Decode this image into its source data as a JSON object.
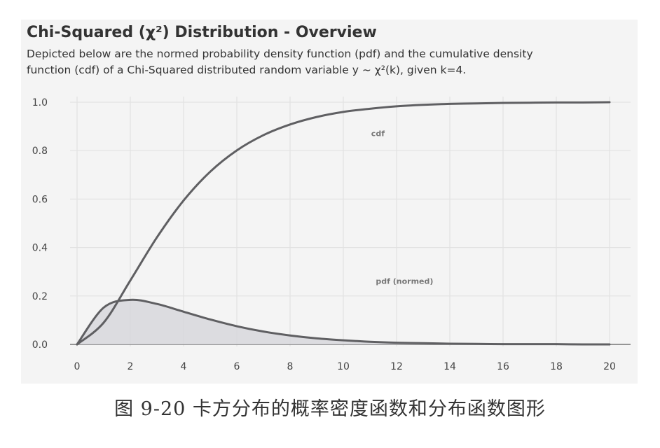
{
  "caption": "图 9-20 卡方分布的概率密度函数和分布函数图形",
  "colors": {
    "line": "#5f5f62",
    "fill": "#d7d7dc",
    "grid": "#e2e2e2",
    "plot_bg": "#f4f4f4",
    "axis": "#777777"
  },
  "chart_data": {
    "type": "line",
    "title": "Chi-Squared (χ²) Distribution - Overview",
    "subtitle_line1": "Depicted below are the normed probability density function (pdf) and the cumulative density",
    "subtitle_line2": "function (cdf) of a Chi-Squared distributed random variable y ~ χ²(k), given k=4.",
    "xlabel": "",
    "ylabel": "",
    "xlim": [
      0,
      20
    ],
    "ylim": [
      0,
      1.0
    ],
    "grid": true,
    "x_ticks": [
      "0",
      "2",
      "4",
      "6",
      "8",
      "10",
      "12",
      "14",
      "16",
      "18",
      "20"
    ],
    "y_ticks": [
      "0.0",
      "0.2",
      "0.4",
      "0.6",
      "0.8",
      "1.0"
    ],
    "x": [
      0,
      1,
      2,
      3,
      4,
      5,
      6,
      7,
      8,
      9,
      10,
      11,
      12,
      13,
      14,
      15,
      16,
      17,
      18,
      19,
      20
    ],
    "series": [
      {
        "name": "cdf",
        "values": [
          0.0,
          0.09,
          0.264,
          0.442,
          0.594,
          0.713,
          0.801,
          0.864,
          0.908,
          0.939,
          0.96,
          0.973,
          0.983,
          0.989,
          0.993,
          0.995,
          0.997,
          0.998,
          0.999,
          0.999,
          1.0
        ],
        "filled": false
      },
      {
        "name": "pdf (normed)",
        "values": [
          0.0,
          0.152,
          0.184,
          0.167,
          0.135,
          0.103,
          0.075,
          0.053,
          0.037,
          0.025,
          0.017,
          0.011,
          0.007,
          0.005,
          0.003,
          0.002,
          0.001,
          0.001,
          0.001,
          0.0,
          0.0
        ],
        "filled": true
      }
    ]
  }
}
